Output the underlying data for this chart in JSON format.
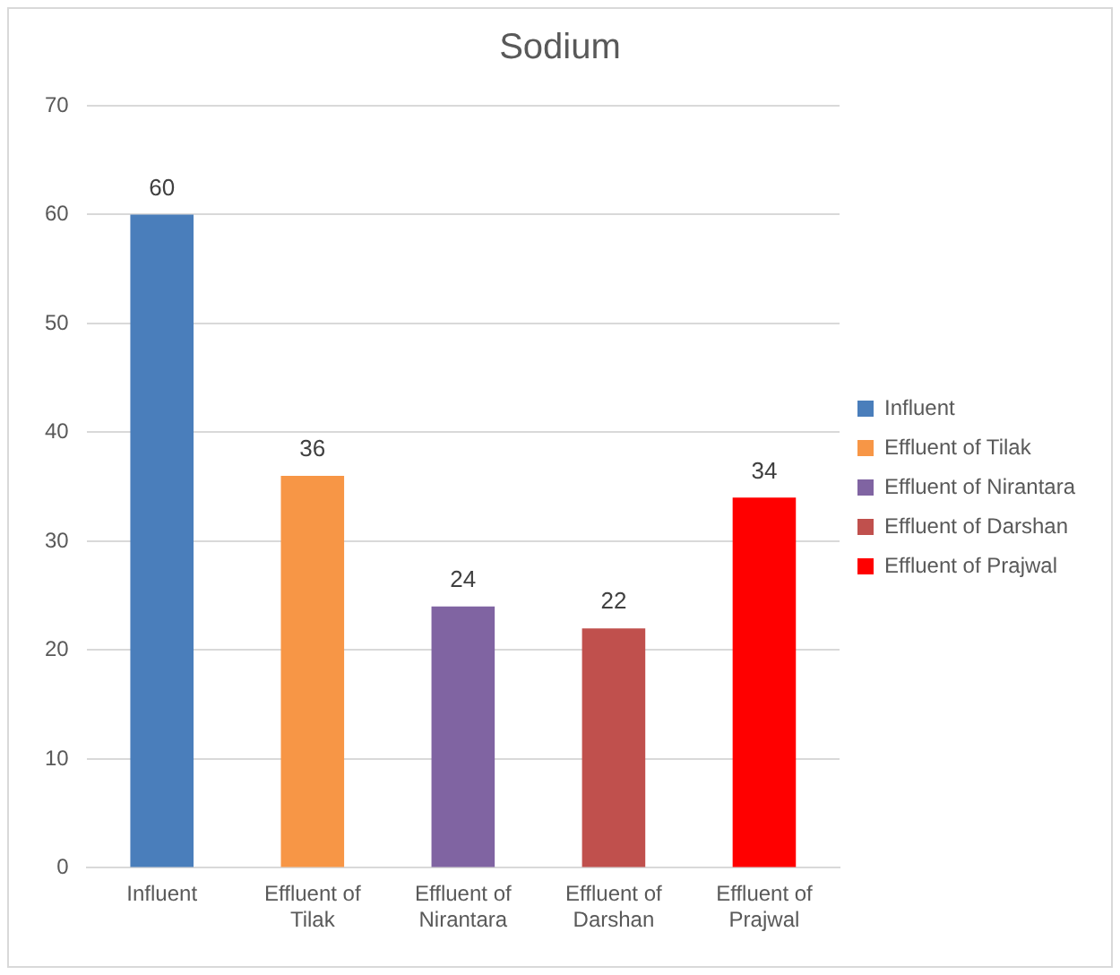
{
  "chart_data": {
    "type": "bar",
    "title": "Sodium",
    "categories": [
      "Influent",
      "Effluent of Tilak",
      "Effluent of Nirantara",
      "Effluent of Darshan",
      "Effluent of Prajwal"
    ],
    "series": [
      {
        "name": "Influent",
        "color": "#4a7ebb",
        "values": [
          60,
          null,
          null,
          null,
          null
        ]
      },
      {
        "name": "Effluent of Tilak",
        "color": "#f79646",
        "values": [
          null,
          36,
          null,
          null,
          null
        ]
      },
      {
        "name": "Effluent of Nirantara",
        "color": "#8064a2",
        "values": [
          null,
          null,
          24,
          null,
          null
        ]
      },
      {
        "name": "Effluent of Darshan",
        "color": "#c0504d",
        "values": [
          null,
          null,
          null,
          22,
          null
        ]
      },
      {
        "name": "Effluent of Prajwal",
        "color": "#ff0000",
        "values": [
          null,
          null,
          null,
          null,
          34
        ]
      }
    ],
    "ylim": [
      0,
      70
    ],
    "yticks": [
      0,
      10,
      20,
      30,
      40,
      50,
      60,
      70
    ],
    "grid": "y",
    "legend": "right",
    "data_labels": true
  }
}
